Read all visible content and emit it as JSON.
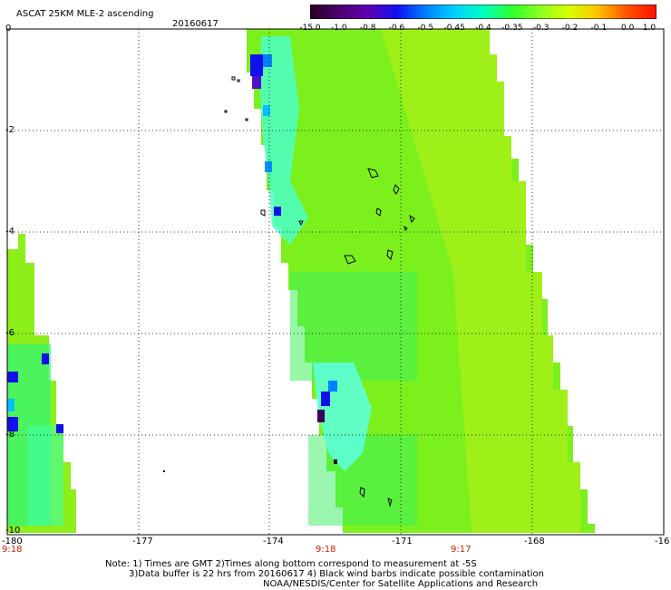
{
  "header": {
    "title": "ASCAT 25KM MLE-2 ascending",
    "date": "20160617"
  },
  "colorbar": {
    "labels": [
      "-15.0",
      "-1.0",
      "-0.8",
      "-0.6",
      "-0.5",
      "-0.45",
      "-0.4",
      "-0.35",
      "-0.3",
      "-0.2",
      "-0.1",
      "0.0",
      "1.0"
    ],
    "colors": [
      "#2a0020",
      "#4a0070",
      "#6000b0",
      "#1010f0",
      "#0080ff",
      "#00d0ff",
      "#00ffc0",
      "#30ff30",
      "#90ff20",
      "#d8ff00",
      "#ffc000",
      "#ff5000",
      "#ff1000"
    ]
  },
  "map": {
    "lat_labels": [
      "0",
      "-2",
      "-4",
      "-6",
      "-8",
      "-10"
    ],
    "lon_labels": [
      "-180",
      "-177",
      "-174",
      "-171",
      "-168",
      "-16"
    ],
    "time_labels": [
      "9:18",
      "9:18",
      "9:17"
    ],
    "swath_fill": "#7cf01c"
  },
  "notes": {
    "line1": "Note: 1) Times are GMT  2)Times along bottom correspond to measurement at -5S",
    "line2": "3)Data buffer is 22 hrs from 20160617  4) Black wind barbs indicate possible contamination",
    "line3": "NOAA/NESDIS/Center for Satellite Applications and Research"
  }
}
